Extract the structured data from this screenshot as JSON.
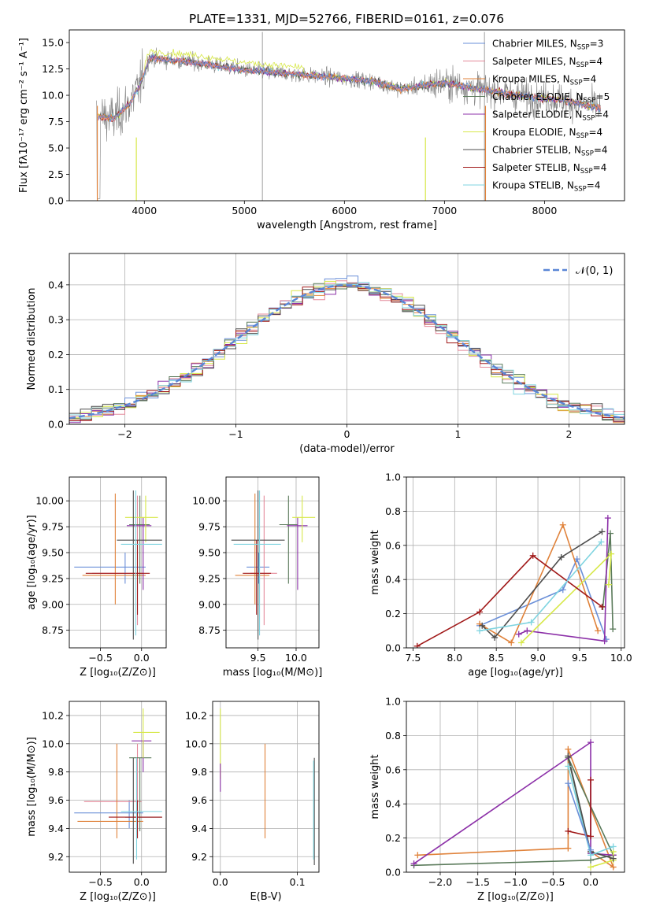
{
  "colors": {
    "s0": "#6a8fd8",
    "s1": "#e4899a",
    "s2": "#e0823a",
    "s3": "#5a7a5a",
    "s4": "#8c30a8",
    "s5": "#d7e84a",
    "s6": "#4d4d4d",
    "s7": "#a01818",
    "s8": "#7fd4e0",
    "gray_spectrum": "#808080",
    "gaussian": "#5a86d6",
    "grid": "#b0b0b0"
  },
  "figure": {
    "title": "PLATE=1331, MJD=52766, FIBERID=0161, z=0.076"
  },
  "chart_data": [
    {
      "id": "spectrum",
      "type": "line",
      "title": "PLATE=1331, MJD=52766, FIBERID=0161, z=0.076",
      "xlabel": "wavelength [Angstrom, rest frame]",
      "ylabel": "Flux [fλ10⁻¹⁷ erg cm⁻² s⁻¹ A⁻¹]",
      "xlim": [
        3250,
        8800
      ],
      "ylim": [
        0,
        16.2
      ],
      "xticks": [
        4000,
        5000,
        6000,
        7000,
        8000
      ],
      "yticks": [
        0.0,
        2.5,
        5.0,
        7.5,
        10.0,
        12.5,
        15.0
      ],
      "grid": false,
      "legend_placement": "top-right",
      "legend": [
        {
          "label": "Chabrier MILES, N",
          "sub": "SSP",
          "tail": "=3"
        },
        {
          "label": "Salpeter MILES, N",
          "sub": "SSP",
          "tail": "=4"
        },
        {
          "label": "Kroupa MILES, N",
          "sub": "SSP",
          "tail": "=4"
        },
        {
          "label": "Chabrier ELODIE, N",
          "sub": "SSP",
          "tail": "=5"
        },
        {
          "label": "Salpeter ELODIE, N",
          "sub": "SSP",
          "tail": "=4"
        },
        {
          "label": "Kroupa ELODIE, N",
          "sub": "SSP",
          "tail": "=4"
        },
        {
          "label": "Chabrier STELIB, N",
          "sub": "SSP",
          "tail": "=4"
        },
        {
          "label": "Salpeter STELIB, N",
          "sub": "SSP",
          "tail": "=4"
        },
        {
          "label": "Kroupa STELIB, N",
          "sub": "SSP",
          "tail": "=4"
        }
      ],
      "continuum_x": [
        3540,
        3700,
        3850,
        3950,
        4050,
        4300,
        4600,
        5000,
        5500,
        6000,
        6300,
        6560,
        7000,
        7400,
        7800,
        8200,
        8550
      ],
      "continuum_y": [
        8.0,
        7.8,
        9.2,
        10.8,
        13.5,
        13.3,
        13.0,
        12.4,
        12.0,
        11.6,
        11.3,
        10.6,
        11.2,
        10.5,
        9.9,
        9.5,
        8.8
      ]
    },
    {
      "id": "residuals",
      "type": "bar",
      "xlabel": "(data-model)/error",
      "ylabel": "Normed distribution",
      "xlim": [
        -2.5,
        2.5
      ],
      "ylim": [
        0,
        0.49
      ],
      "xticks": [
        -2,
        -1,
        0,
        1,
        2
      ],
      "yticks": [
        0.0,
        0.1,
        0.2,
        0.3,
        0.4
      ],
      "grid": true,
      "bin_width": 0.1,
      "legend_placement": "top-right",
      "legend": [
        {
          "label": "𝒩(0, 1)"
        }
      ]
    },
    {
      "id": "age_vs_Z",
      "type": "scatter",
      "xlabel": "Z [log₁₀(Z/Z⊙)]",
      "ylabel": "age  [log₁₀(age/yr)]",
      "xlim": [
        -0.88,
        0.3
      ],
      "ylim": [
        8.58,
        10.23
      ],
      "xticks": [
        -0.5,
        0.0
      ],
      "yticks": [
        8.75,
        9.0,
        9.25,
        9.5,
        9.75,
        10.0
      ],
      "grid": true,
      "points": [
        {
          "s": 0,
          "x": -0.2,
          "y": 9.36,
          "xe": [
            -0.82,
            0.05
          ],
          "ye": [
            9.2,
            9.5
          ]
        },
        {
          "s": 1,
          "x": -0.05,
          "y": 9.3,
          "xe": [
            -0.6,
            0.02
          ],
          "ye": [
            8.8,
            10.05
          ]
        },
        {
          "s": 2,
          "x": -0.32,
          "y": 9.28,
          "xe": [
            -0.72,
            0.05
          ],
          "ye": [
            9.0,
            10.07
          ]
        },
        {
          "s": 3,
          "x": -0.02,
          "y": 9.77,
          "xe": [
            -0.15,
            0.1
          ],
          "ye": [
            9.2,
            10.05
          ]
        },
        {
          "s": 4,
          "x": 0.02,
          "y": 9.76,
          "xe": [
            -0.18,
            0.12
          ],
          "ye": [
            9.14,
            9.84
          ]
        },
        {
          "s": 5,
          "x": 0.05,
          "y": 9.84,
          "xe": [
            -0.2,
            0.2
          ],
          "ye": [
            9.6,
            10.05
          ]
        },
        {
          "s": 6,
          "x": -0.1,
          "y": 9.62,
          "xe": [
            -0.3,
            0.25
          ],
          "ye": [
            8.66,
            10.1
          ]
        },
        {
          "s": 7,
          "x": -0.05,
          "y": 9.3,
          "xe": [
            -0.68,
            0.1
          ],
          "ye": [
            8.9,
            9.62
          ]
        },
        {
          "s": 8,
          "x": -0.07,
          "y": 9.58,
          "xe": [
            -0.25,
            0.25
          ],
          "ye": [
            8.7,
            10.1
          ]
        }
      ]
    },
    {
      "id": "age_vs_mass",
      "type": "scatter",
      "xlabel": "mass [log₁₀(M/M⊙)]",
      "ylabel": "",
      "xlim": [
        9.08,
        10.3
      ],
      "ylim": [
        8.58,
        10.23
      ],
      "xticks": [
        9.5,
        10.0
      ],
      "yticks": [
        8.75,
        9.0,
        9.25,
        9.5,
        9.75,
        10.0
      ],
      "grid": true,
      "points": [
        {
          "s": 0,
          "x": 9.51,
          "y": 9.36,
          "xe": [
            9.35,
            9.65
          ],
          "ye": [
            9.2,
            9.5
          ]
        },
        {
          "s": 1,
          "x": 9.58,
          "y": 9.3,
          "xe": [
            9.4,
            9.75
          ],
          "ye": [
            8.8,
            10.05
          ]
        },
        {
          "s": 2,
          "x": 9.46,
          "y": 9.28,
          "xe": [
            9.2,
            9.65
          ],
          "ye": [
            9.0,
            10.07
          ]
        },
        {
          "s": 3,
          "x": 9.9,
          "y": 9.77,
          "xe": [
            9.78,
            10.02
          ],
          "ye": [
            9.2,
            10.05
          ]
        },
        {
          "s": 4,
          "x": 10.02,
          "y": 9.76,
          "xe": [
            9.88,
            10.15
          ],
          "ye": [
            9.14,
            9.84
          ]
        },
        {
          "s": 5,
          "x": 10.08,
          "y": 9.84,
          "xe": [
            9.95,
            10.25
          ],
          "ye": [
            9.6,
            10.05
          ]
        },
        {
          "s": 6,
          "x": 9.5,
          "y": 9.62,
          "xe": [
            9.15,
            9.85
          ],
          "ye": [
            8.66,
            10.1
          ]
        },
        {
          "s": 7,
          "x": 9.48,
          "y": 9.3,
          "xe": [
            9.3,
            9.67
          ],
          "ye": [
            8.9,
            9.62
          ]
        },
        {
          "s": 8,
          "x": 9.52,
          "y": 9.58,
          "xe": [
            9.18,
            9.8
          ],
          "ye": [
            8.7,
            10.1
          ]
        }
      ]
    },
    {
      "id": "mass_weight_vs_age",
      "type": "line",
      "xlabel": "age  [log₁₀(age/yr)]",
      "ylabel": "mass weight",
      "xlim": [
        7.42,
        10.04
      ],
      "ylim": [
        0,
        1
      ],
      "xticks": [
        7.5,
        8.0,
        8.5,
        9.0,
        9.5,
        10.0
      ],
      "yticks": [
        0.0,
        0.2,
        0.4,
        0.6,
        0.8,
        1.0
      ],
      "grid": true,
      "series": [
        {
          "s": 0,
          "x": [
            8.3,
            9.3,
            9.47,
            9.82
          ],
          "y": [
            0.13,
            0.34,
            0.52,
            0.05
          ]
        },
        {
          "s": 2,
          "x": [
            8.3,
            8.68,
            9.3,
            9.72
          ],
          "y": [
            0.14,
            0.03,
            0.72,
            0.1
          ]
        },
        {
          "s": 3,
          "x": [
            9.78,
            9.87,
            9.9
          ],
          "y": [
            0.24,
            0.67,
            0.11
          ]
        },
        {
          "s": 4,
          "x": [
            8.77,
            8.87,
            9.8,
            9.84
          ],
          "y": [
            0.08,
            0.1,
            0.04,
            0.76
          ]
        },
        {
          "s": 5,
          "x": [
            8.8,
            9.88,
            9.85
          ],
          "y": [
            0.03,
            0.55,
            0.37
          ]
        },
        {
          "s": 6,
          "x": [
            8.33,
            8.48,
            9.28,
            9.77
          ],
          "y": [
            0.13,
            0.06,
            0.53,
            0.68
          ]
        },
        {
          "s": 7,
          "x": [
            7.55,
            8.3,
            8.94,
            9.77
          ],
          "y": [
            0.01,
            0.21,
            0.54,
            0.24
          ]
        },
        {
          "s": 8,
          "x": [
            8.3,
            8.92,
            9.76
          ],
          "y": [
            0.1,
            0.15,
            0.62
          ]
        }
      ]
    },
    {
      "id": "mass_vs_Z",
      "type": "scatter",
      "xlabel": "Z [log₁₀(Z/Z⊙)]",
      "ylabel": "mass [log₁₀(M/M⊙)]",
      "xlim": [
        -0.88,
        0.3
      ],
      "ylim": [
        9.09,
        10.3
      ],
      "xticks": [
        -0.5,
        0.0
      ],
      "yticks": [
        9.2,
        9.4,
        9.6,
        9.8,
        10.0,
        10.2
      ],
      "grid": true,
      "points": [
        {
          "s": 0,
          "x": -0.15,
          "y": 9.51,
          "xe": [
            -0.82,
            0.02
          ],
          "ye": [
            9.4,
            9.6
          ]
        },
        {
          "s": 1,
          "x": -0.05,
          "y": 9.59,
          "xe": [
            -0.7,
            0.0
          ],
          "ye": [
            9.4,
            10.0
          ]
        },
        {
          "s": 2,
          "x": -0.3,
          "y": 9.45,
          "xe": [
            -0.78,
            0.02
          ],
          "ye": [
            9.33,
            10.0
          ]
        },
        {
          "s": 3,
          "x": -0.02,
          "y": 9.9,
          "xe": [
            -0.15,
            0.12
          ],
          "ye": [
            9.38,
            9.9
          ]
        },
        {
          "s": 4,
          "x": 0.02,
          "y": 10.02,
          "xe": [
            -0.12,
            0.12
          ],
          "ye": [
            9.8,
            10.02
          ]
        },
        {
          "s": 5,
          "x": 0.02,
          "y": 10.08,
          "xe": [
            -0.1,
            0.22
          ],
          "ye": [
            9.9,
            10.25
          ]
        },
        {
          "s": 6,
          "x": -0.1,
          "y": 9.48,
          "xe": [
            -0.2,
            0.25
          ],
          "ye": [
            9.15,
            9.9
          ]
        },
        {
          "s": 7,
          "x": -0.05,
          "y": 9.48,
          "xe": [
            -0.4,
            0.25
          ],
          "ye": [
            9.33,
            9.6
          ]
        },
        {
          "s": 8,
          "x": -0.06,
          "y": 9.52,
          "xe": [
            -0.25,
            0.25
          ],
          "ye": [
            9.18,
            9.9
          ]
        }
      ]
    },
    {
      "id": "mass_vs_ebv",
      "type": "scatter",
      "xlabel": "E(B-V)",
      "ylabel": "",
      "xlim": [
        -0.01,
        0.128
      ],
      "ylim": [
        9.09,
        10.3
      ],
      "xticks": [
        0.0,
        0.1
      ],
      "yticks": [
        9.2,
        9.4,
        9.6,
        9.8,
        10.0,
        10.2
      ],
      "grid": true,
      "points": [
        {
          "s": 5,
          "x": 0.0,
          "y": 10.0,
          "xe": [
            0.0,
            0.0
          ],
          "ye": [
            9.75,
            10.25
          ]
        },
        {
          "s": 4,
          "x": 0.0,
          "y": 9.8,
          "xe": [
            0.0,
            0.0
          ],
          "ye": [
            9.66,
            9.86
          ]
        },
        {
          "s": 2,
          "x": 0.058,
          "y": 9.6,
          "xe": [
            0.058,
            0.058
          ],
          "ye": [
            9.33,
            10.0
          ]
        },
        {
          "s": 6,
          "x": 0.122,
          "y": 9.5,
          "xe": [
            0.122,
            0.122
          ],
          "ye": [
            9.14,
            9.9
          ]
        },
        {
          "s": 8,
          "x": 0.121,
          "y": 9.5,
          "xe": [
            0.121,
            0.121
          ],
          "ye": [
            9.18,
            9.88
          ]
        }
      ]
    },
    {
      "id": "mass_weight_vs_Z",
      "type": "line",
      "xlabel": "Z [log₁₀(Z/Z⊙)]",
      "ylabel": "mass weight",
      "xlim": [
        -2.45,
        0.45
      ],
      "ylim": [
        0,
        1
      ],
      "xticks": [
        -2.0,
        -1.5,
        -1.0,
        -0.5,
        0.0
      ],
      "yticks": [
        0.0,
        0.2,
        0.4,
        0.6,
        0.8,
        1.0
      ],
      "grid": true,
      "series": [
        {
          "s": 2,
          "x": [
            -2.3,
            -0.3,
            -0.3,
            0.3,
            0.0
          ],
          "y": [
            0.1,
            0.14,
            0.72,
            0.03,
            0.12
          ]
        },
        {
          "s": 3,
          "x": [
            -2.35,
            0.0,
            0.3,
            -0.3,
            0.0
          ],
          "y": [
            0.04,
            0.07,
            0.1,
            0.67,
            0.11
          ]
        },
        {
          "s": 4,
          "x": [
            -2.35,
            0.0,
            0.0,
            0.3
          ],
          "y": [
            0.05,
            0.76,
            0.11,
            0.1
          ]
        },
        {
          "s": 5,
          "x": [
            0.0,
            0.3,
            0.3
          ],
          "y": [
            0.03,
            0.07,
            0.12
          ]
        },
        {
          "s": 6,
          "x": [
            -0.3,
            0.0,
            0.3
          ],
          "y": [
            0.68,
            0.12,
            0.08
          ]
        },
        {
          "s": 7,
          "x": [
            -0.3,
            0.0,
            0.0
          ],
          "y": [
            0.24,
            0.21,
            0.54
          ]
        },
        {
          "s": 8,
          "x": [
            -0.3,
            0.0,
            0.3
          ],
          "y": [
            0.62,
            0.1,
            0.15
          ]
        },
        {
          "s": 0,
          "x": [
            -0.3,
            0.0
          ],
          "y": [
            0.52,
            0.13
          ]
        }
      ]
    }
  ]
}
